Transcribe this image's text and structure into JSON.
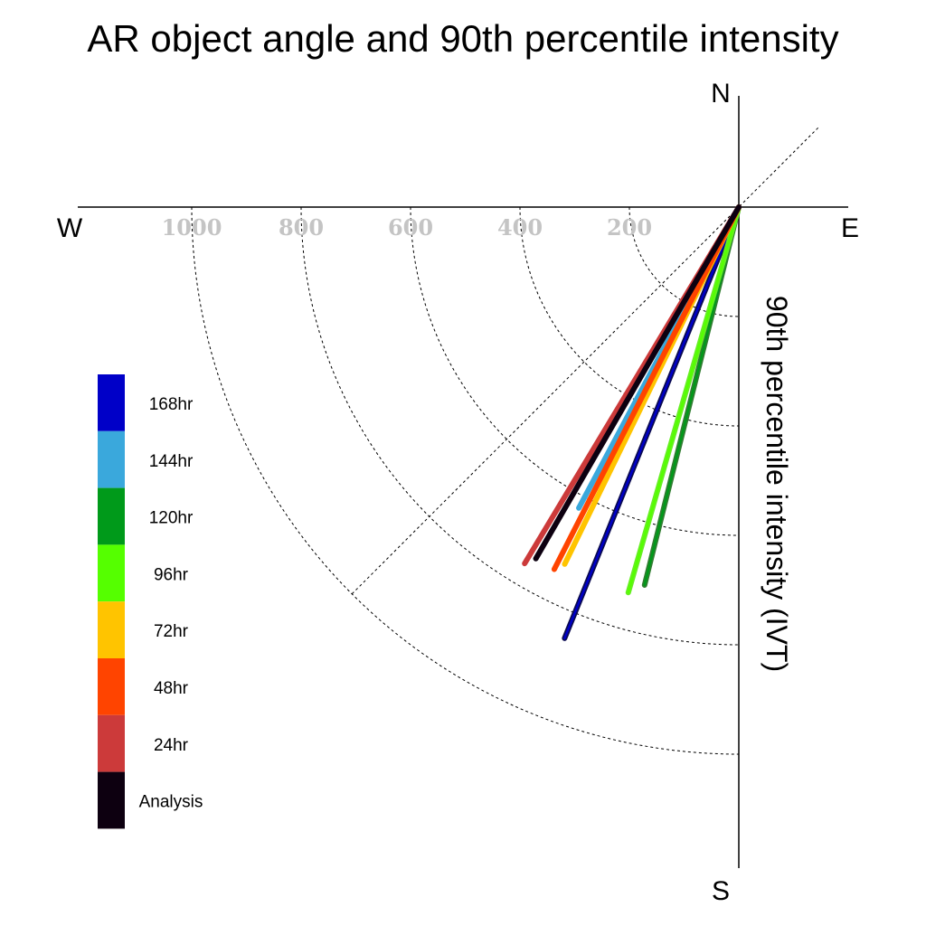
{
  "chart_data": {
    "type": "polar-vector",
    "title": "AR object angle and 90th percentile intensity",
    "ylabel": "90th percentile intensity (IVT)",
    "directions": {
      "north": "N",
      "south": "S",
      "east": "E",
      "west": "W"
    },
    "radial_ticks": [
      200,
      400,
      600,
      800,
      1000
    ],
    "radial_tick_labels": [
      "200",
      "400",
      "600",
      "800",
      "1000"
    ],
    "rings": [
      200,
      400,
      600,
      800,
      1000
    ],
    "diagonal_guide_deg": 45,
    "series": [
      {
        "name": "168hr",
        "color": "#0000c8",
        "stroke": "#0a0a50",
        "angle_deg": 202,
        "intensity": 850
      },
      {
        "name": "144hr",
        "color": "#3aa8dc",
        "stroke": "#3aa8dc",
        "angle_deg": 208,
        "intensity": 623
      },
      {
        "name": "120hr",
        "color": "#009a1a",
        "stroke": "#2f7d2f",
        "angle_deg": 194,
        "intensity": 712
      },
      {
        "name": "96hr",
        "color": "#55ff00",
        "stroke": "#66ee22",
        "angle_deg": 196,
        "intensity": 733
      },
      {
        "name": "72hr",
        "color": "#ffc400",
        "stroke": "#ffc400",
        "angle_deg": 206,
        "intensity": 726
      },
      {
        "name": "48hr",
        "color": "#ff4400",
        "stroke": "#ff4400",
        "angle_deg": 207,
        "intensity": 743
      },
      {
        "name": "24hr",
        "color": "#cc3a3a",
        "stroke": "#cc3a3a",
        "angle_deg": 211,
        "intensity": 760
      },
      {
        "name": "Analysis",
        "color": "#0d0010",
        "stroke": "#0d0010",
        "angle_deg": 210,
        "intensity": 742
      }
    ]
  }
}
